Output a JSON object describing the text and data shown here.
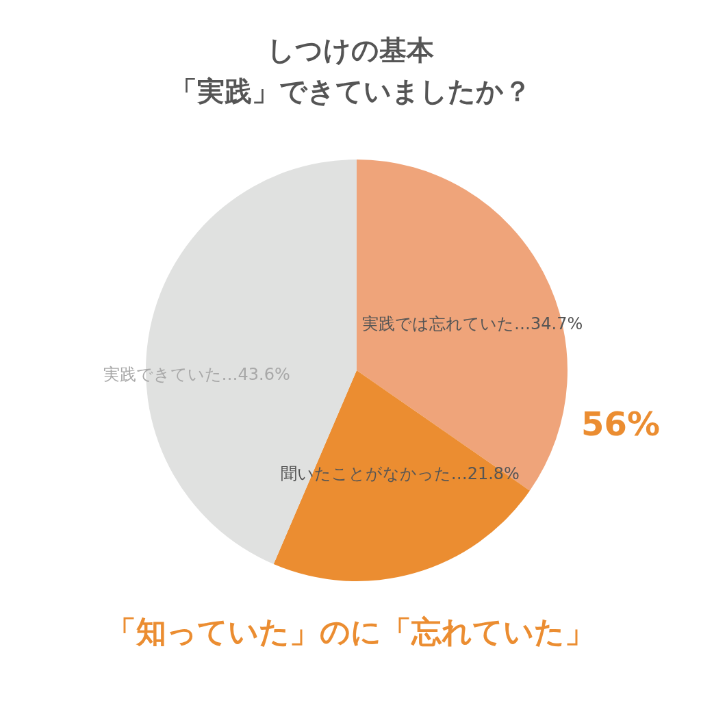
{
  "chart_data": {
    "type": "pie",
    "title": "しつけの基本",
    "subtitle": "「実践」できていましたか？",
    "categories": [
      "実践では忘れていた",
      "聞いたことがなかった",
      "実践できていた"
    ],
    "values": [
      34.7,
      21.8,
      43.6
    ],
    "colors": [
      "#efa47a",
      "#eb8d31",
      "#e0e1e0"
    ],
    "value_labels": [
      "…34.7%",
      "…21.8%",
      "…43.6%"
    ],
    "annotations": [
      "56%",
      "「知っていた」のに「忘れていた」"
    ],
    "legend": false
  }
}
